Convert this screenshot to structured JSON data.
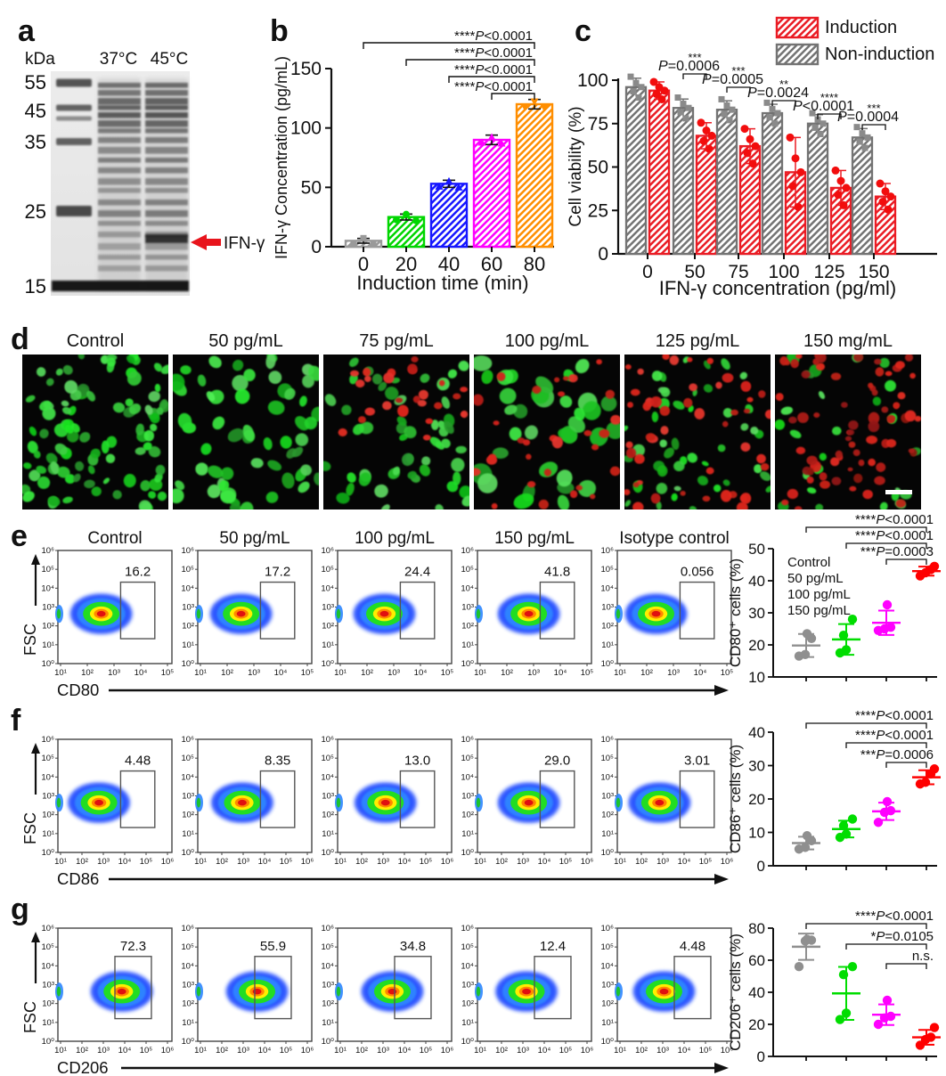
{
  "panel_a": {
    "letter": "a",
    "kda_label": "kDa",
    "ladder": [
      "55",
      "45",
      "35",
      "25",
      "15"
    ],
    "lane_labels": [
      "37°C",
      "45°C"
    ],
    "band_label": "IFN-γ",
    "arrow_color": "#e8141c"
  },
  "panel_b": {
    "letter": "b",
    "ylabel": "IFN-γ Concentration (pg/mL)",
    "xlabel": "Induction time (min)",
    "yticks": [
      "0",
      "50",
      "100",
      "150"
    ],
    "categories": [
      "0",
      "20",
      "40",
      "60",
      "80"
    ],
    "values": [
      5,
      25,
      53,
      90,
      120
    ],
    "errors": [
      2,
      2.5,
      3,
      4,
      4
    ],
    "colors": [
      "#9a9a9a",
      "#00d600",
      "#1616ff",
      "#ff00ff",
      "#ff8e00"
    ],
    "sig_labels": [
      "****P<0.0001",
      "****P<0.0001",
      "****P<0.0001",
      "****P<0.0001"
    ]
  },
  "panel_c": {
    "letter": "c",
    "ylabel": "Cell viability (%)",
    "xlabel": "IFN-γ concentration (pg/ml)",
    "yticks": [
      "0",
      "25",
      "50",
      "75",
      "100"
    ],
    "categories": [
      "0",
      "50",
      "75",
      "100",
      "125",
      "150"
    ],
    "legend": [
      {
        "label": "Induction",
        "color": "#ea1c24"
      },
      {
        "label": "Non-induction",
        "color": "#737373"
      }
    ],
    "non_induction": [
      96,
      84,
      83,
      81,
      75,
      67
    ],
    "induction": [
      94,
      68,
      62,
      47,
      38,
      33
    ],
    "sig": [
      {
        "stars": "***",
        "p": "P=0.0006"
      },
      {
        "stars": "***",
        "p": "P=0.0005"
      },
      {
        "stars": "**",
        "p": "P=0.0024"
      },
      {
        "stars": "****",
        "p": "P<0.0001"
      },
      {
        "stars": "***",
        "p": "P=0.0004"
      }
    ]
  },
  "panel_d": {
    "letter": "d",
    "labels": [
      "Control",
      "50 pg/mL",
      "75 pg/mL",
      "100 pg/mL",
      "125 pg/mL",
      "150 mg/mL"
    ]
  },
  "flow_rows": [
    {
      "letter": "e",
      "marker": "CD80",
      "fsc": "FSC",
      "titles": [
        "Control",
        "50 pg/mL",
        "100 pg/mL",
        "150 pg/mL",
        "Isotype control"
      ],
      "gate_values": [
        "16.2",
        "17.2",
        "24.4",
        "41.8",
        "0.056"
      ],
      "x_ticks": [
        "10¹",
        "10²",
        "10³",
        "10⁴",
        "10⁵"
      ],
      "y_ticks": [
        "10⁰",
        "10¹",
        "10²",
        "10³",
        "10⁴",
        "10⁵",
        "10⁶"
      ],
      "scatter": {
        "ylabel": "CD80⁺ cells (%)",
        "ymin": 10,
        "ymax": 50,
        "yticks": [
          "10",
          "20",
          "30",
          "40",
          "50"
        ],
        "legend": [
          {
            "label": "Control",
            "color": "#8f8f8f"
          },
          {
            "label": "50 pg/mL",
            "color": "#00dd00"
          },
          {
            "label": "100 pg/mL",
            "color": "#ff00ff"
          },
          {
            "label": "150 pg/mL",
            "color": "#fe0000"
          }
        ],
        "groups": [
          {
            "color": "#8f8f8f",
            "points": [
              16.5,
              17,
              22,
              23.5
            ],
            "mean": 19.8,
            "sd": 3.6
          },
          {
            "color": "#00dd00",
            "points": [
              17.5,
              18.5,
              23,
              28
            ],
            "mean": 21.7,
            "sd": 4.8
          },
          {
            "color": "#ff00ff",
            "points": [
              24.5,
              25,
              25.5,
              32.5
            ],
            "mean": 26.9,
            "sd": 3.8
          },
          {
            "color": "#fe0000",
            "points": [
              41.5,
              42.5,
              43.5,
              44.5
            ],
            "mean": 43,
            "sd": 1.4
          }
        ],
        "sig": [
          "****P<0.0001",
          "****P<0.0001",
          "***P=0.0003"
        ]
      }
    },
    {
      "letter": "f",
      "marker": "CD86",
      "fsc": "FSC",
      "titles": [],
      "gate_values": [
        "4.48",
        "8.35",
        "13.0",
        "29.0",
        "3.01"
      ],
      "x_ticks": [
        "10¹",
        "10²",
        "10³",
        "10⁴",
        "10⁵",
        "10⁶"
      ],
      "y_ticks": [
        "10⁰",
        "10¹",
        "10²",
        "10³",
        "10⁴",
        "10⁵",
        "10⁶"
      ],
      "scatter": {
        "ylabel": "CD86⁺ cells (%)",
        "ymin": 0,
        "ymax": 40,
        "yticks": [
          "0",
          "10",
          "20",
          "30",
          "40"
        ],
        "legend": [],
        "groups": [
          {
            "color": "#8f8f8f",
            "points": [
              5,
              5.5,
              7.5,
              9
            ],
            "mean": 6.8,
            "sd": 1.9
          },
          {
            "color": "#00dd00",
            "points": [
              8.5,
              9.5,
              12,
              14
            ],
            "mean": 11,
            "sd": 2.5
          },
          {
            "color": "#ff00ff",
            "points": [
              13,
              16,
              16.5,
              19.2
            ],
            "mean": 16.3,
            "sd": 2.6
          },
          {
            "color": "#fe0000",
            "points": [
              24.5,
              25,
              27.5,
              29
            ],
            "mean": 26.5,
            "sd": 2.1
          }
        ],
        "sig": [
          "****P<0.0001",
          "****P<0.0001",
          "***P=0.0006"
        ]
      }
    },
    {
      "letter": "g",
      "marker": "CD206",
      "fsc": "FSC",
      "titles": [],
      "gate_values": [
        "72.3",
        "55.9",
        "34.8",
        "12.4",
        "4.48"
      ],
      "x_ticks": [
        "10¹",
        "10²",
        "10³",
        "10⁴",
        "10⁵",
        "10⁶"
      ],
      "y_ticks": [
        "10⁰",
        "10¹",
        "10²",
        "10³",
        "10⁴",
        "10⁵",
        "10⁶"
      ],
      "scatter": {
        "ylabel": "CD206⁺ cells (%)",
        "ymin": 0,
        "ymax": 80,
        "yticks": [
          "0",
          "20",
          "40",
          "60",
          "80"
        ],
        "legend": [],
        "groups": [
          {
            "color": "#8f8f8f",
            "points": [
              56,
              72,
              72.5,
              73
            ],
            "mean": 68.4,
            "sd": 8.2
          },
          {
            "color": "#00dd00",
            "points": [
              23,
              27,
              51,
              56
            ],
            "mean": 39.3,
            "sd": 16.5
          },
          {
            "color": "#ff00ff",
            "points": [
              20,
              24,
              25,
              35
            ],
            "mean": 26,
            "sd": 6.4
          },
          {
            "color": "#fe0000",
            "points": [
              7,
              10.5,
              12,
              18
            ],
            "mean": 11.9,
            "sd": 4.6
          }
        ],
        "sig": [
          "****P<0.0001",
          "*P=0.0105",
          "n.s."
        ]
      }
    }
  ],
  "chart_data": [
    {
      "type": "bar",
      "panel": "b",
      "categories": [
        0,
        20,
        40,
        60,
        80
      ],
      "values": [
        5,
        25,
        53,
        90,
        120
      ],
      "title": "",
      "xlabel": "Induction time (min)",
      "ylabel": "IFN-γ Concentration (pg/mL)",
      "ylim": [
        0,
        150
      ],
      "annotations": [
        "****P<0.0001 (0 vs 80)",
        "****P<0.0001 (20 vs 80)",
        "****P<0.0001 (40 vs 80)",
        "****P<0.0001 (60 vs 80)"
      ]
    },
    {
      "type": "bar",
      "panel": "c",
      "categories": [
        0,
        50,
        75,
        100,
        125,
        150
      ],
      "series": [
        {
          "name": "Non-induction",
          "values": [
            96,
            84,
            83,
            81,
            75,
            67
          ]
        },
        {
          "name": "Induction",
          "values": [
            94,
            68,
            62,
            47,
            38,
            33
          ]
        }
      ],
      "xlabel": "IFN-γ concentration (pg/ml)",
      "ylabel": "Cell viability (%)",
      "ylim": [
        0,
        100
      ],
      "annotations": [
        "P=0.0006",
        "P=0.0005",
        "P=0.0024",
        "P<0.0001",
        "P=0.0004"
      ],
      "legend_position": "top-right"
    },
    {
      "type": "scatter",
      "panel": "e",
      "marker": "CD80",
      "flow_gate_percent": {
        "Control": 16.2,
        "50 pg/mL": 17.2,
        "100 pg/mL": 24.4,
        "150 pg/mL": 41.8,
        "Isotype control": 0.056
      },
      "categories": [
        "Control",
        "50 pg/mL",
        "100 pg/mL",
        "150 pg/mL"
      ],
      "series": [
        {
          "name": "CD80+ cells (%)",
          "values": [
            [
              16.5,
              17,
              22,
              23.5
            ],
            [
              17.5,
              18.5,
              23,
              28
            ],
            [
              24.5,
              25,
              25.5,
              32.5
            ],
            [
              41.5,
              42.5,
              43.5,
              44.5
            ]
          ]
        }
      ],
      "ylabel": "CD80⁺ cells (%)",
      "ylim": [
        10,
        50
      ],
      "annotations": [
        "****P<0.0001",
        "****P<0.0001",
        "***P=0.0003"
      ]
    },
    {
      "type": "scatter",
      "panel": "f",
      "marker": "CD86",
      "flow_gate_percent": {
        "Control": 4.48,
        "50 pg/mL": 8.35,
        "100 pg/mL": 13.0,
        "150 pg/mL": 29.0,
        "Isotype control": 3.01
      },
      "categories": [
        "Control",
        "50 pg/mL",
        "100 pg/mL",
        "150 pg/mL"
      ],
      "series": [
        {
          "name": "CD86+ cells (%)",
          "values": [
            [
              5,
              5.5,
              7.5,
              9
            ],
            [
              8.5,
              9.5,
              12,
              14
            ],
            [
              13,
              16,
              16.5,
              19.2
            ],
            [
              24.5,
              25,
              27.5,
              29
            ]
          ]
        }
      ],
      "ylabel": "CD86⁺ cells (%)",
      "ylim": [
        0,
        40
      ],
      "annotations": [
        "****P<0.0001",
        "****P<0.0001",
        "***P=0.0006"
      ]
    },
    {
      "type": "scatter",
      "panel": "g",
      "marker": "CD206",
      "flow_gate_percent": {
        "Control": 72.3,
        "50 pg/mL": 55.9,
        "100 pg/mL": 34.8,
        "150 pg/mL": 12.4,
        "Isotype control": 4.48
      },
      "categories": [
        "Control",
        "50 pg/mL",
        "100 pg/mL",
        "150 pg/mL"
      ],
      "series": [
        {
          "name": "CD206+ cells (%)",
          "values": [
            [
              56,
              72,
              72.5,
              73
            ],
            [
              23,
              27,
              51,
              56
            ],
            [
              20,
              24,
              25,
              35
            ],
            [
              7,
              10.5,
              12,
              18
            ]
          ]
        }
      ],
      "ylabel": "CD206⁺ cells (%)",
      "ylim": [
        0,
        80
      ],
      "annotations": [
        "****P<0.0001",
        "*P=0.0105",
        "n.s."
      ]
    }
  ]
}
